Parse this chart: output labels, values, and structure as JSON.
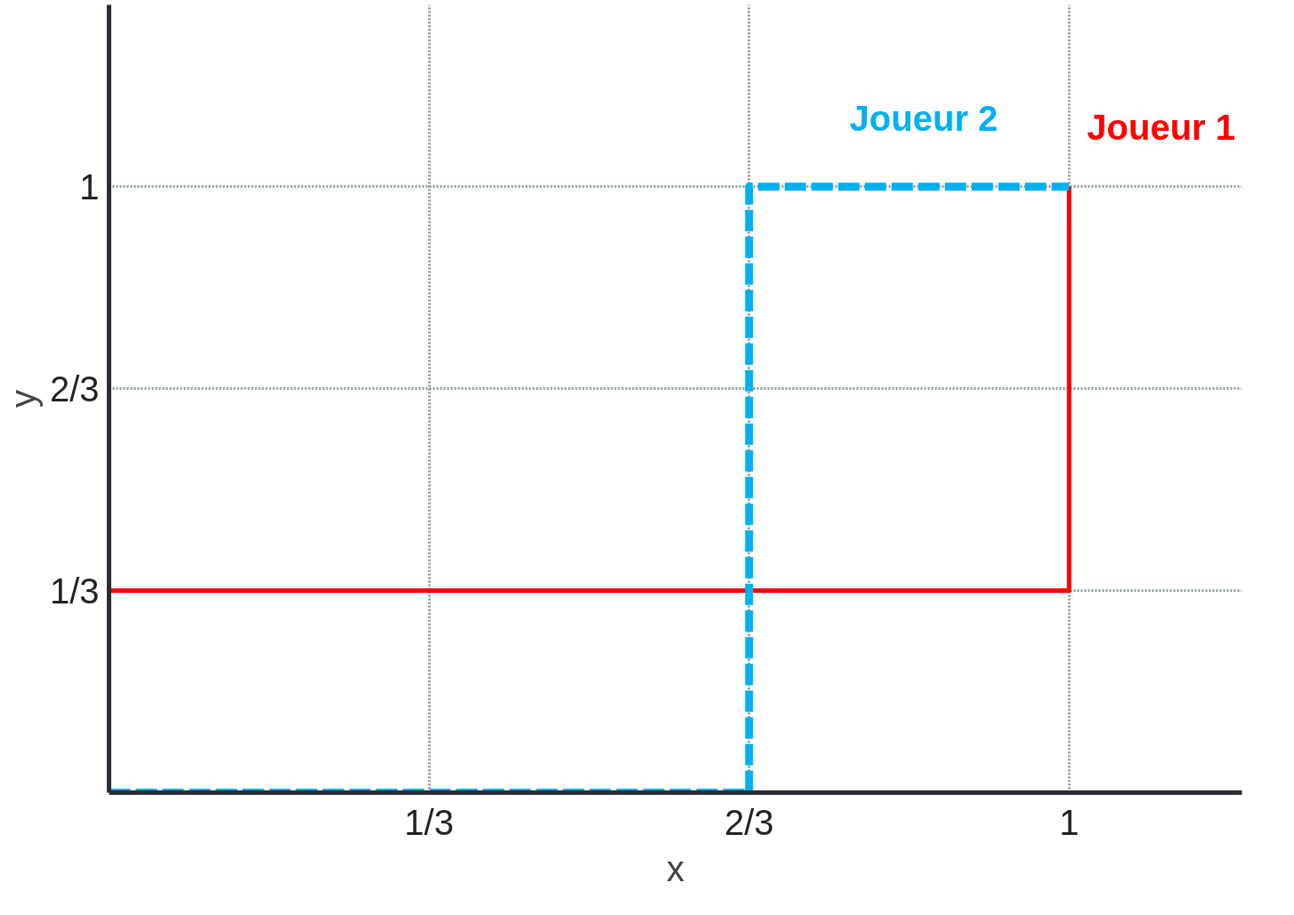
{
  "chart_data": {
    "type": "line",
    "xlabel": "x",
    "ylabel": "y",
    "series": [
      {
        "name": "Joueur 1",
        "color": "#ff0000",
        "line_style": "solid",
        "x": [
          0,
          0,
          1,
          1
        ],
        "values": [
          0,
          0.3333,
          0.3333,
          1
        ]
      },
      {
        "name": "Joueur 2",
        "color": "#00b0f0",
        "line_style": "dashed",
        "x": [
          0,
          0.6667,
          0.6667,
          1
        ],
        "values": [
          0,
          0,
          1,
          1
        ]
      }
    ],
    "xlim": [
      0,
      1.18
    ],
    "ylim": [
      0,
      1.3
    ],
    "xticks": [
      {
        "value": 0.3333,
        "label": "1/3"
      },
      {
        "value": 0.6667,
        "label": "2/3"
      },
      {
        "value": 1,
        "label": "1"
      }
    ],
    "yticks": [
      {
        "value": 0.3333,
        "label": "1/3"
      },
      {
        "value": 0.6667,
        "label": "2/3"
      },
      {
        "value": 1,
        "label": "1"
      }
    ],
    "grid": true
  }
}
